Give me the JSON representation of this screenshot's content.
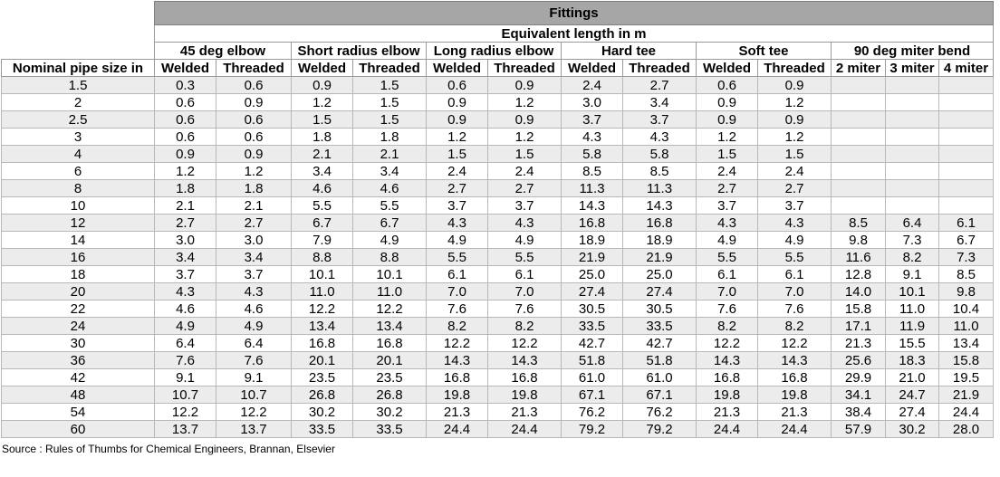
{
  "header": {
    "title": "Fittings",
    "subtitle": "Equivalent length in m",
    "row_label": "Nominal pipe size in",
    "groups": [
      "45 deg elbow",
      "Short radius elbow",
      "Long radius elbow",
      "Hard tee",
      "Soft tee",
      "90 deg miter bend"
    ],
    "subcolumns": [
      "Welded",
      "Threaded",
      "Welded",
      "Threaded",
      "Welded",
      "Threaded",
      "Welded",
      "Threaded",
      "Welded",
      "Threaded",
      "2 miter",
      "3 miter",
      "4 miter"
    ]
  },
  "rows": [
    [
      "1.5",
      "0.3",
      "0.6",
      "0.9",
      "1.5",
      "0.6",
      "0.9",
      "2.4",
      "2.7",
      "0.6",
      "0.9",
      "",
      "",
      ""
    ],
    [
      "2",
      "0.6",
      "0.9",
      "1.2",
      "1.5",
      "0.9",
      "1.2",
      "3.0",
      "3.4",
      "0.9",
      "1.2",
      "",
      "",
      ""
    ],
    [
      "2.5",
      "0.6",
      "0.6",
      "1.5",
      "1.5",
      "0.9",
      "0.9",
      "3.7",
      "3.7",
      "0.9",
      "0.9",
      "",
      "",
      ""
    ],
    [
      "3",
      "0.6",
      "0.6",
      "1.8",
      "1.8",
      "1.2",
      "1.2",
      "4.3",
      "4.3",
      "1.2",
      "1.2",
      "",
      "",
      ""
    ],
    [
      "4",
      "0.9",
      "0.9",
      "2.1",
      "2.1",
      "1.5",
      "1.5",
      "5.8",
      "5.8",
      "1.5",
      "1.5",
      "",
      "",
      ""
    ],
    [
      "6",
      "1.2",
      "1.2",
      "3.4",
      "3.4",
      "2.4",
      "2.4",
      "8.5",
      "8.5",
      "2.4",
      "2.4",
      "",
      "",
      ""
    ],
    [
      "8",
      "1.8",
      "1.8",
      "4.6",
      "4.6",
      "2.7",
      "2.7",
      "11.3",
      "11.3",
      "2.7",
      "2.7",
      "",
      "",
      ""
    ],
    [
      "10",
      "2.1",
      "2.1",
      "5.5",
      "5.5",
      "3.7",
      "3.7",
      "14.3",
      "14.3",
      "3.7",
      "3.7",
      "",
      "",
      ""
    ],
    [
      "12",
      "2.7",
      "2.7",
      "6.7",
      "6.7",
      "4.3",
      "4.3",
      "16.8",
      "16.8",
      "4.3",
      "4.3",
      "8.5",
      "6.4",
      "6.1"
    ],
    [
      "14",
      "3.0",
      "3.0",
      "7.9",
      "4.9",
      "4.9",
      "4.9",
      "18.9",
      "18.9",
      "4.9",
      "4.9",
      "9.8",
      "7.3",
      "6.7"
    ],
    [
      "16",
      "3.4",
      "3.4",
      "8.8",
      "8.8",
      "5.5",
      "5.5",
      "21.9",
      "21.9",
      "5.5",
      "5.5",
      "11.6",
      "8.2",
      "7.3"
    ],
    [
      "18",
      "3.7",
      "3.7",
      "10.1",
      "10.1",
      "6.1",
      "6.1",
      "25.0",
      "25.0",
      "6.1",
      "6.1",
      "12.8",
      "9.1",
      "8.5"
    ],
    [
      "20",
      "4.3",
      "4.3",
      "11.0",
      "11.0",
      "7.0",
      "7.0",
      "27.4",
      "27.4",
      "7.0",
      "7.0",
      "14.0",
      "10.1",
      "9.8"
    ],
    [
      "22",
      "4.6",
      "4.6",
      "12.2",
      "12.2",
      "7.6",
      "7.6",
      "30.5",
      "30.5",
      "7.6",
      "7.6",
      "15.8",
      "11.0",
      "10.4"
    ],
    [
      "24",
      "4.9",
      "4.9",
      "13.4",
      "13.4",
      "8.2",
      "8.2",
      "33.5",
      "33.5",
      "8.2",
      "8.2",
      "17.1",
      "11.9",
      "11.0"
    ],
    [
      "30",
      "6.4",
      "6.4",
      "16.8",
      "16.8",
      "12.2",
      "12.2",
      "42.7",
      "42.7",
      "12.2",
      "12.2",
      "21.3",
      "15.5",
      "13.4"
    ],
    [
      "36",
      "7.6",
      "7.6",
      "20.1",
      "20.1",
      "14.3",
      "14.3",
      "51.8",
      "51.8",
      "14.3",
      "14.3",
      "25.6",
      "18.3",
      "15.8"
    ],
    [
      "42",
      "9.1",
      "9.1",
      "23.5",
      "23.5",
      "16.8",
      "16.8",
      "61.0",
      "61.0",
      "16.8",
      "16.8",
      "29.9",
      "21.0",
      "19.5"
    ],
    [
      "48",
      "10.7",
      "10.7",
      "26.8",
      "26.8",
      "19.8",
      "19.8",
      "67.1",
      "67.1",
      "19.8",
      "19.8",
      "34.1",
      "24.7",
      "21.9"
    ],
    [
      "54",
      "12.2",
      "12.2",
      "30.2",
      "30.2",
      "21.3",
      "21.3",
      "76.2",
      "76.2",
      "21.3",
      "21.3",
      "38.4",
      "27.4",
      "24.4"
    ],
    [
      "60",
      "13.7",
      "13.7",
      "33.5",
      "33.5",
      "24.4",
      "24.4",
      "79.2",
      "79.2",
      "24.4",
      "24.4",
      "57.9",
      "30.2",
      "28.0"
    ]
  ],
  "footer": {
    "source": "Source : Rules of Thumbs for Chemical Engineers, Brannan, Elsevier"
  }
}
